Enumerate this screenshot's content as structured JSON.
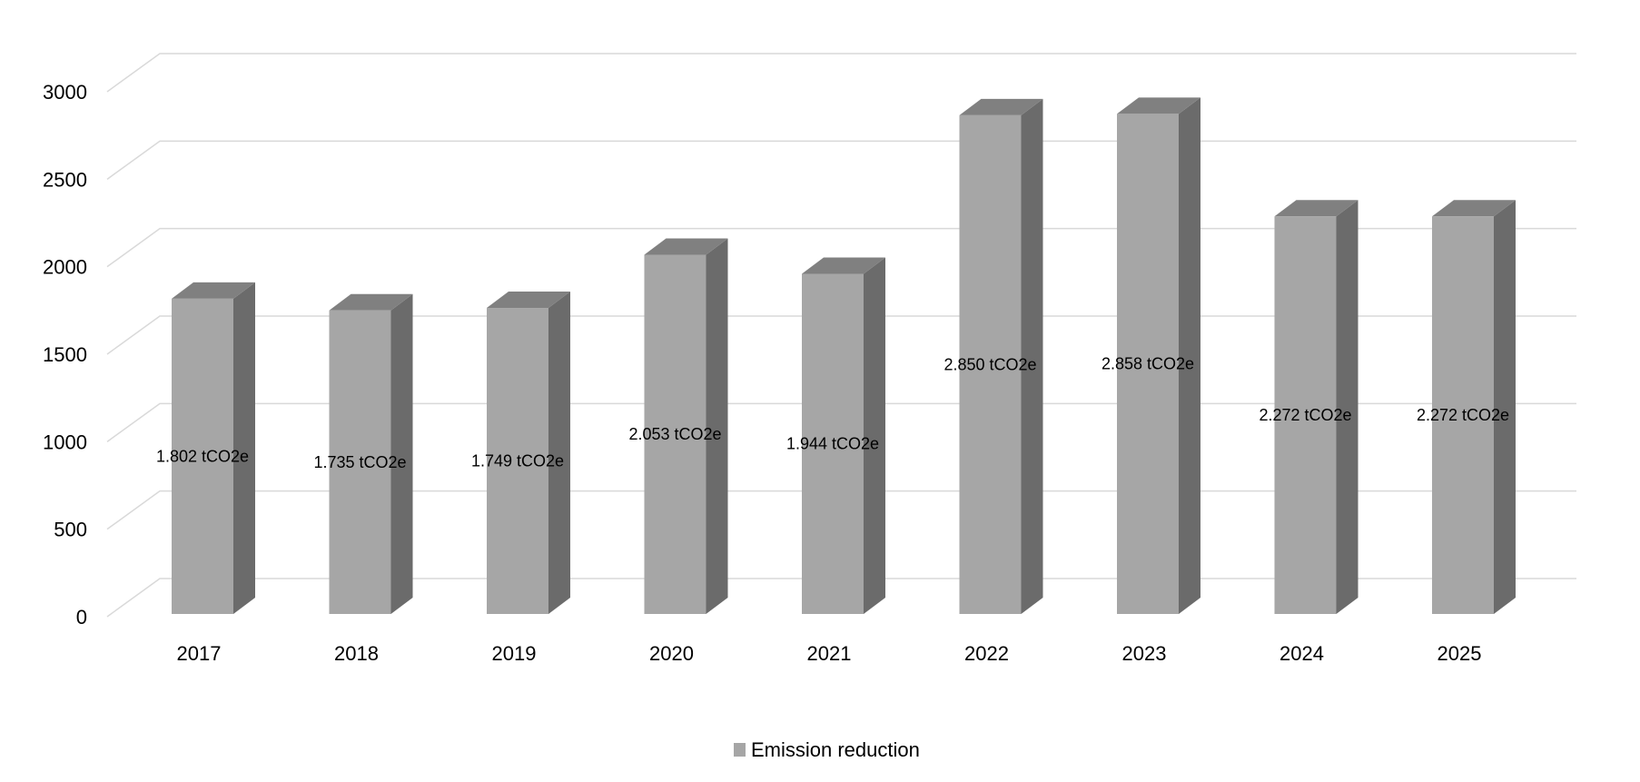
{
  "chart_data": {
    "type": "bar",
    "style": "3d-column",
    "categories": [
      "2017",
      "2018",
      "2019",
      "2020",
      "2021",
      "2022",
      "2023",
      "2024",
      "2025"
    ],
    "series": [
      {
        "name": "Emission reduction",
        "values": [
          1802,
          1735,
          1749,
          2053,
          1944,
          2850,
          2858,
          2272,
          2272
        ],
        "data_labels": [
          "1.802 tCO2e",
          "1.735 tCO2e",
          "1.749 tCO2e",
          "2.053 tCO2e",
          "1.944 tCO2e",
          "2.850 tCO2e",
          "2.858 tCO2e",
          "2.272 tCO2e",
          "2.272 tCO2e"
        ],
        "color": "#a6a6a6",
        "top_color": "#808080",
        "side_color": "#6b6b6b"
      }
    ],
    "yticks": [
      "0",
      "500",
      "1000",
      "1500",
      "2000",
      "2500",
      "3000"
    ],
    "ylim": [
      0,
      3000
    ],
    "grid": true,
    "grid_color": "#d9d9d9",
    "legend_position": "bottom"
  }
}
